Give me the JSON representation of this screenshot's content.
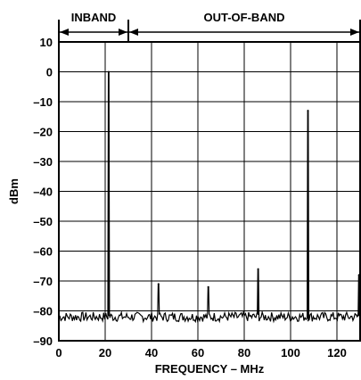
{
  "chart_data": {
    "type": "line",
    "xlabel": "FREQUENCY – MHz",
    "ylabel": "dBm",
    "xlim": [
      0,
      130
    ],
    "ylim": [
      -90,
      10
    ],
    "x_ticks": [
      0,
      20,
      40,
      60,
      80,
      100,
      120
    ],
    "x_tick_labels": [
      "0",
      "20",
      "40",
      "60",
      "80",
      "100",
      "120"
    ],
    "y_ticks": [
      10,
      0,
      -10,
      -20,
      -30,
      -40,
      -50,
      -60,
      -70,
      -80,
      -90
    ],
    "y_tick_labels": [
      "10",
      "0",
      "–10",
      "–20",
      "–30",
      "–40",
      "–50",
      "–60",
      "–70",
      "–80",
      "–90"
    ],
    "grid": true,
    "noise_floor_dbm": -82,
    "series": [
      {
        "points": [
          {
            "x": 21.5,
            "y": 0
          },
          {
            "x": 43,
            "y": -71
          },
          {
            "x": 64.5,
            "y": -72
          },
          {
            "x": 86,
            "y": -66
          },
          {
            "x": 107.5,
            "y": -13
          },
          {
            "x": 129.5,
            "y": -68
          }
        ]
      }
    ],
    "band_annotations": [
      {
        "label": "INBAND",
        "from": 0,
        "to": 30
      },
      {
        "label": "OUT-OF-BAND",
        "from": 30,
        "to": 130
      }
    ]
  }
}
